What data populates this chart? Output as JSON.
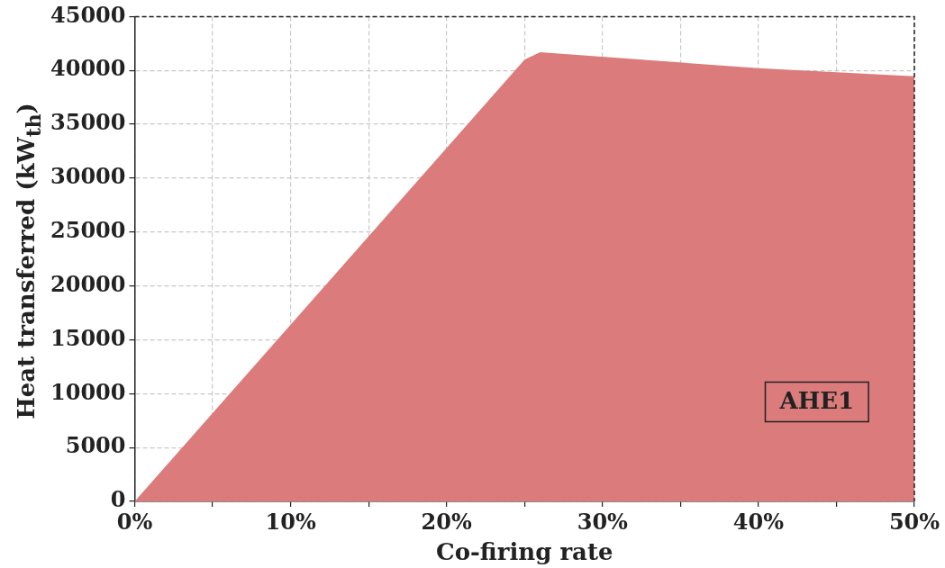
{
  "chart_data": {
    "type": "area",
    "xlabel": "Co-firing rate",
    "ylabel": "Heat transferred (kW$_{th}$)",
    "annotations": [
      "AHE1"
    ],
    "x": [
      0,
      25,
      26,
      40,
      50
    ],
    "series": [
      {
        "color": "#db7b7b",
        "values": [
          0,
          41000,
          41700,
          40200,
          39450
        ]
      }
    ],
    "xlim": [
      0,
      50
    ],
    "xticks": [
      {
        "value": 0,
        "label": "0%"
      },
      {
        "value": 5,
        "label": null
      },
      {
        "value": 10,
        "label": "10%"
      },
      {
        "value": 15,
        "label": null
      },
      {
        "value": 20,
        "label": "20%"
      },
      {
        "value": 25,
        "label": null
      },
      {
        "value": 30,
        "label": "30%"
      },
      {
        "value": 35,
        "label": null
      },
      {
        "value": 40,
        "label": "40%"
      },
      {
        "value": 45,
        "label": null
      },
      {
        "value": 50,
        "label": "50%"
      }
    ],
    "ylim": [
      0,
      45000
    ],
    "yticks": [
      0,
      5000,
      10000,
      15000,
      20000,
      25000,
      30000,
      35000,
      40000,
      45000
    ],
    "grid": true,
    "legend": false
  }
}
